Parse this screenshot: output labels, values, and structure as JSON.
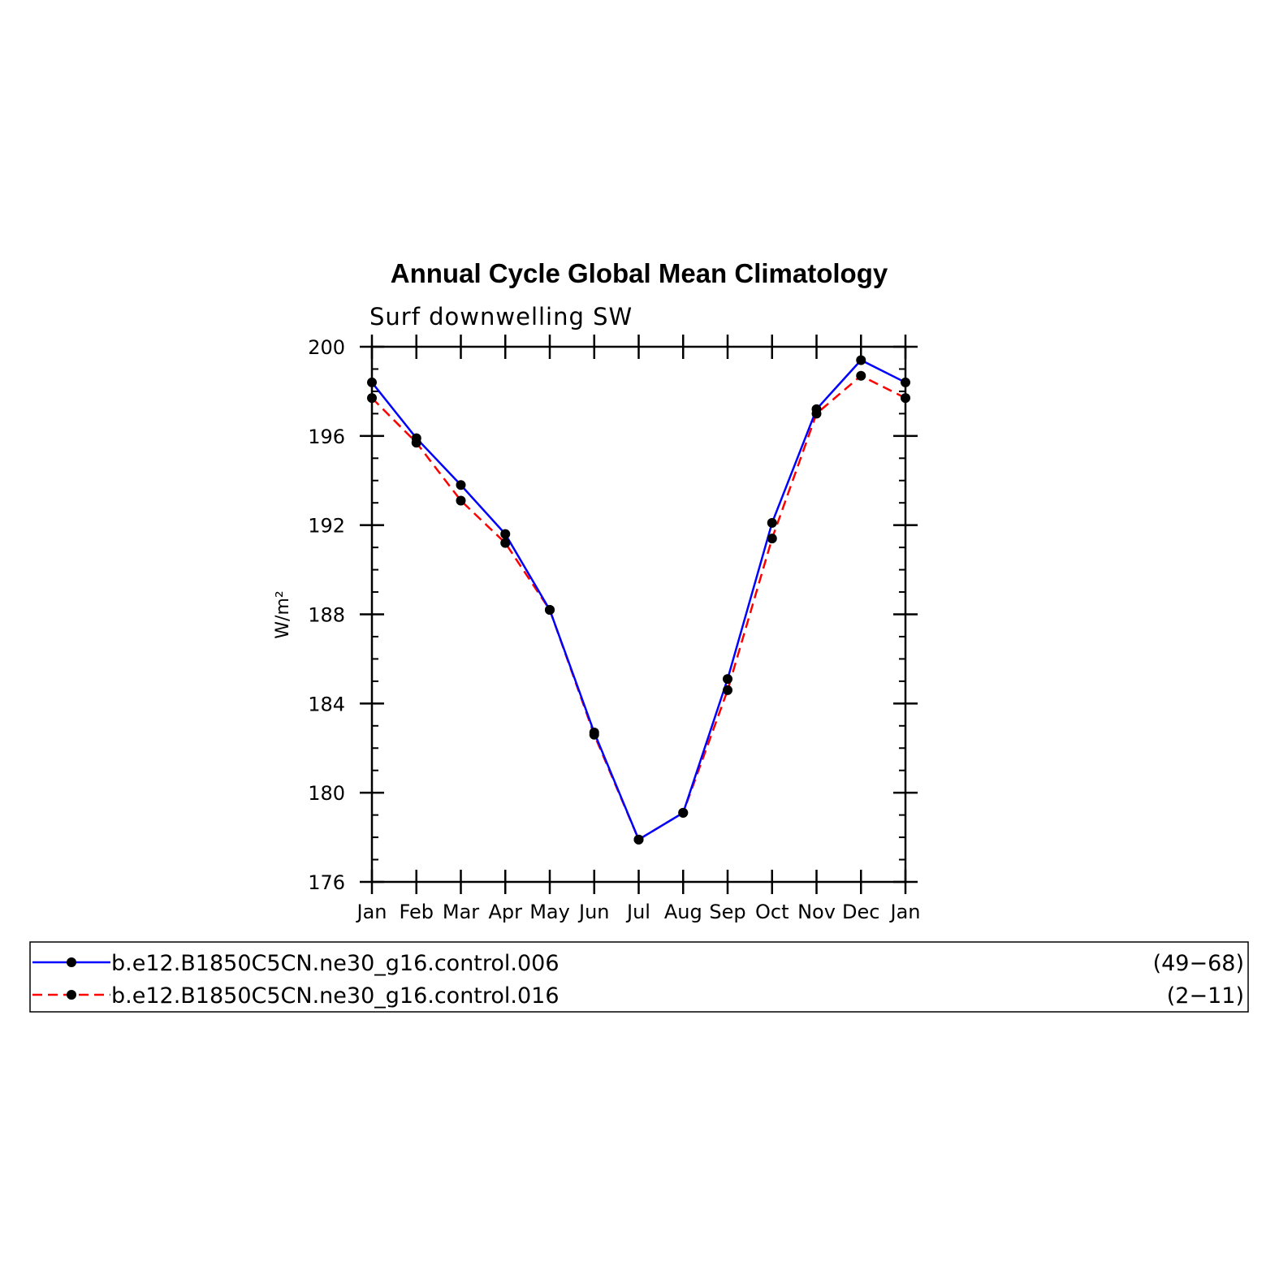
{
  "chart_data": {
    "type": "line",
    "title": "Annual Cycle Global Mean Climatology",
    "subtitle": "Surf downwelling SW",
    "ylabel": "W/m²",
    "categories": [
      "Jan",
      "Feb",
      "Mar",
      "Apr",
      "May",
      "Jun",
      "Jul",
      "Aug",
      "Sep",
      "Oct",
      "Nov",
      "Dec",
      "Jan"
    ],
    "ylim": [
      176,
      200
    ],
    "yticks": [
      176,
      180,
      184,
      188,
      192,
      196,
      200
    ],
    "grid": false,
    "legend_position": "bottom",
    "series": [
      {
        "name": "b.e12.B1850C5CN.ne30_g16.control.006",
        "years": "(49−68)",
        "color": "#0000ff",
        "style": "solid",
        "values": [
          198.4,
          195.9,
          193.8,
          191.6,
          188.2,
          182.7,
          177.9,
          179.1,
          185.1,
          192.1,
          197.2,
          199.4,
          198.4
        ]
      },
      {
        "name": "b.e12.B1850C5CN.ne30_g16.control.016",
        "years": "(2−11)",
        "color": "#ff0000",
        "style": "dashed",
        "values": [
          197.7,
          195.7,
          193.1,
          191.2,
          188.2,
          182.6,
          177.9,
          179.1,
          184.6,
          191.4,
          197.0,
          198.7,
          197.7
        ]
      }
    ]
  }
}
